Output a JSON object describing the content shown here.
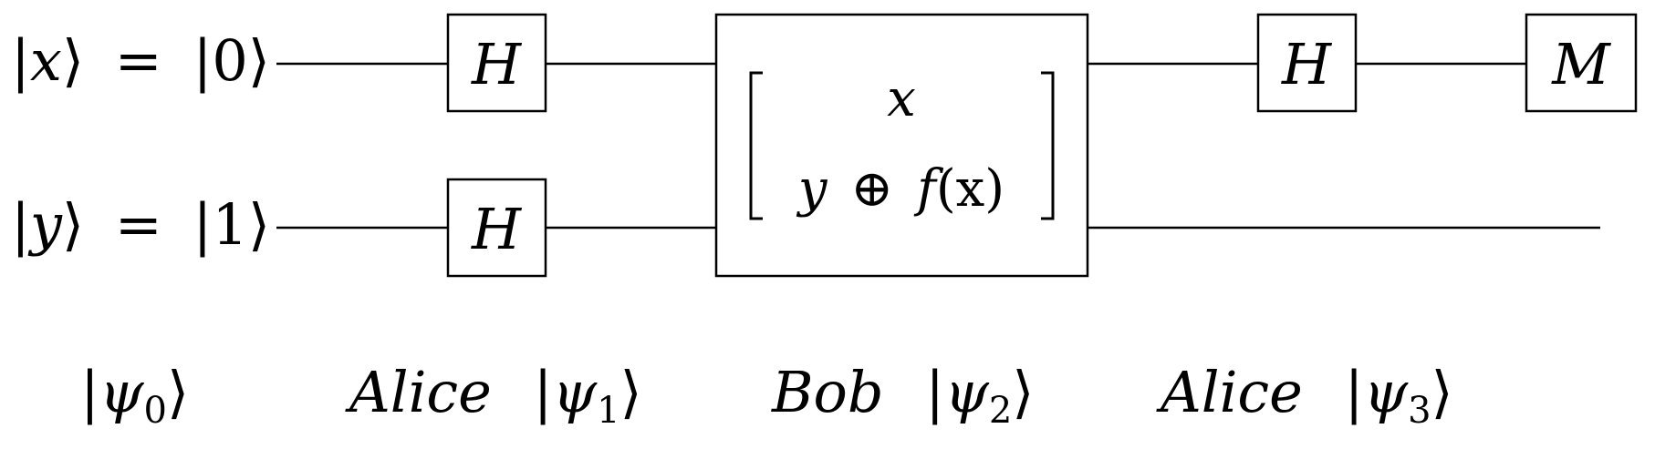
{
  "inputs": {
    "x_qubit": {
      "ket_symbol": "x",
      "value": "0"
    },
    "y_qubit": {
      "ket_symbol": "y",
      "value": "1"
    },
    "equals": "="
  },
  "gates": {
    "hadamard_label": "H",
    "measure_label": "M"
  },
  "oracle": {
    "top_expression": "x",
    "bottom_y": "y",
    "bottom_xor": "⊕",
    "bottom_f": "f",
    "bottom_arg": "(x)"
  },
  "stages": {
    "psi_symbol": "ψ",
    "psi0_index": "0",
    "psi1_index": "1",
    "psi2_index": "2",
    "psi3_index": "3",
    "alice_1": "Alice",
    "bob": "Bob",
    "alice_2": "Alice"
  },
  "ket": {
    "left": "|",
    "right": "⟩"
  }
}
